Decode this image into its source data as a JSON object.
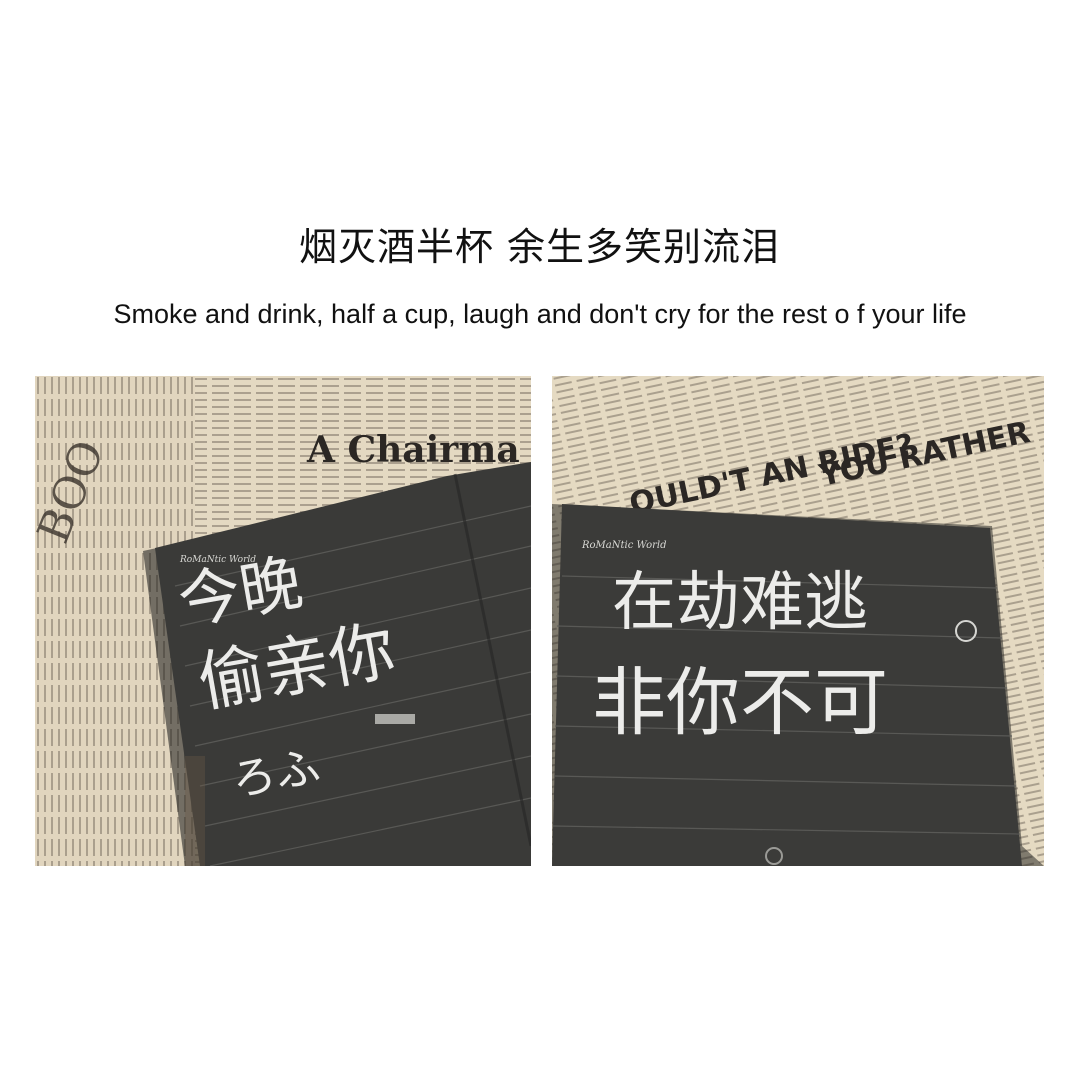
{
  "title": "烟灭酒半杯 余生多笑别流泪",
  "subtitle": "Smoke and drink, half a cup, laugh and don't cry for the rest o f your life",
  "photo_left": {
    "newspaper_headline": "A Chairma",
    "notebook_brand": "RoMaNtic World",
    "handwriting": [
      "今晚",
      "偷亲你",
      "ろふ"
    ],
    "colors": {
      "paper": "#e7dcc6",
      "notebook": "#3a3a38",
      "ink": "#e9e9e6"
    }
  },
  "photo_right": {
    "newspaper_headline": "YOU RATHER",
    "newspaper_subhead": "OULD'T  AN RIDE?",
    "notebook_brand": "RoMaNtic World",
    "handwriting": [
      "在劫难逃",
      "非你不可"
    ],
    "colors": {
      "paper": "#e7dcc6",
      "notebook": "#3b3b39",
      "ink": "#e9e9e6"
    }
  }
}
